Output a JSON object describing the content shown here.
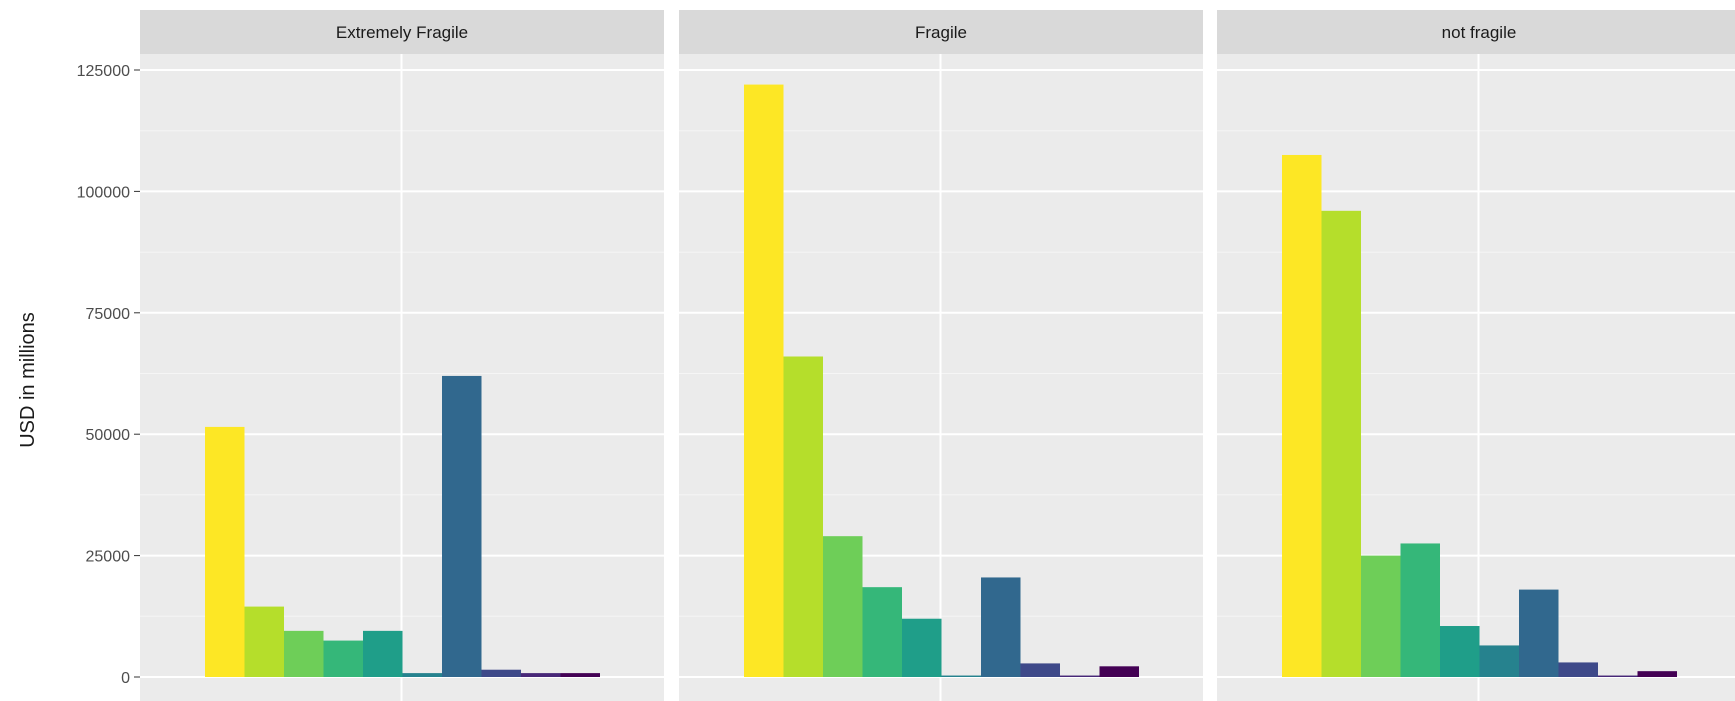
{
  "chart_data": {
    "type": "bar",
    "ylabel": "USD in millions",
    "ylim": [
      -5000,
      125000
    ],
    "yticks": [
      0,
      25000,
      50000,
      75000,
      100000,
      125000
    ],
    "ytick_labels": [
      "0",
      "25000",
      "50000",
      "75000",
      "100000",
      "125000"
    ],
    "grid": true,
    "colors": [
      "#fde725",
      "#b5de2b",
      "#6ece58",
      "#35b779",
      "#1f9e89",
      "#26828e",
      "#31688e",
      "#3e4989",
      "#482878",
      "#440154"
    ],
    "facets": [
      {
        "label": "Extremely Fragile",
        "values": [
          51500,
          14500,
          9500,
          7500,
          9500,
          800,
          62000,
          1500,
          800,
          800
        ]
      },
      {
        "label": "Fragile",
        "values": [
          122000,
          66000,
          29000,
          18500,
          12000,
          300,
          20500,
          2800,
          300,
          2200
        ]
      },
      {
        "label": "not fragile",
        "values": [
          107500,
          96000,
          25000,
          27500,
          10500,
          6500,
          18000,
          3000,
          300,
          1200
        ]
      }
    ]
  }
}
